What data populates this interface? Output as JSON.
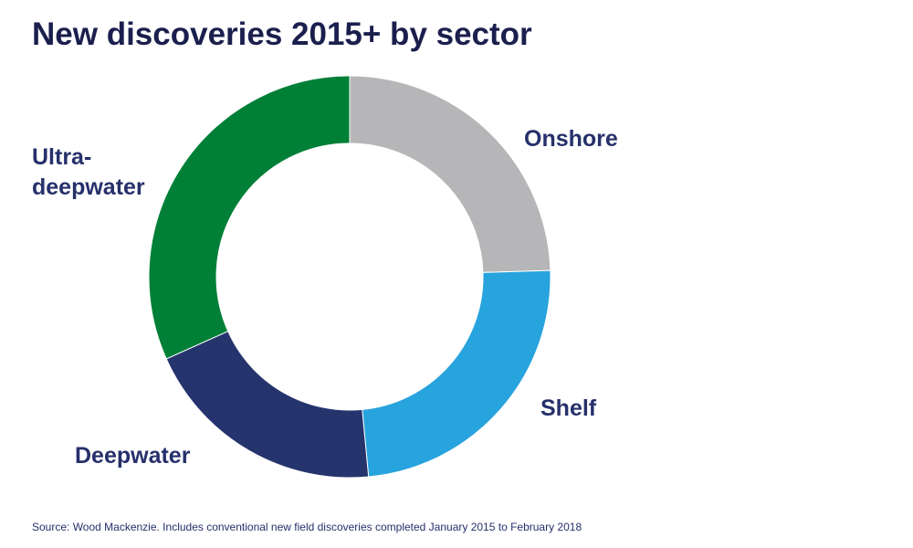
{
  "chart_data": {
    "type": "pie",
    "variant": "donut",
    "title": "New discoveries 2015+ by sector",
    "slices": [
      {
        "label": "Onshore",
        "value": 24.5,
        "color": "#b6b6b8"
      },
      {
        "label": "Shelf",
        "value": 24.0,
        "color": "#27a3dd"
      },
      {
        "label": "Deepwater",
        "value": 19.8,
        "color": "#25346d"
      },
      {
        "label": "Ultra-deepwater",
        "label_lines": [
          "Ultra-",
          "deepwater"
        ],
        "value": 31.7,
        "color": "#007f37"
      }
    ],
    "start": "top, clockwise",
    "legend": "none (direct labels)",
    "source": "Source:  Wood Mackenzie. Includes conventional new field discoveries completed January 2015 to February 2018"
  }
}
